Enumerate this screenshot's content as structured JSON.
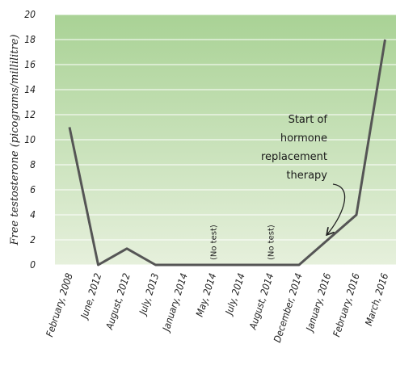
{
  "chart_data": {
    "type": "line",
    "title": "",
    "xlabel": "",
    "ylabel": "Free testosterone (picograms/millilitre)",
    "ylim": [
      0,
      20
    ],
    "yticks": [
      0,
      2,
      4,
      6,
      8,
      10,
      12,
      14,
      16,
      18,
      20
    ],
    "grid": true,
    "categories": [
      "February, 2008",
      "June, 2012",
      "August, 2012",
      "July, 2013",
      "January, 2014",
      "May, 2014",
      "July, 2014",
      "August, 2014",
      "December, 2014",
      "January, 2016",
      "February, 2016",
      "March, 2016"
    ],
    "series": [
      {
        "values": [
          11,
          0,
          1.3,
          0,
          0,
          0,
          0,
          0,
          0,
          2,
          4,
          18
        ]
      }
    ],
    "point_notes": [
      {
        "index": 5,
        "text": "(No test)"
      },
      {
        "index": 7,
        "text": "(No test)"
      }
    ],
    "annotation": {
      "lines": [
        "Start of",
        "hormone",
        "replacement",
        "therapy"
      ],
      "points_to_index": 9
    },
    "colors": {
      "background_top": "#a9d295",
      "background_bottom": "#e6f0dc",
      "line": "#555555",
      "grid": "#ffffff"
    }
  }
}
